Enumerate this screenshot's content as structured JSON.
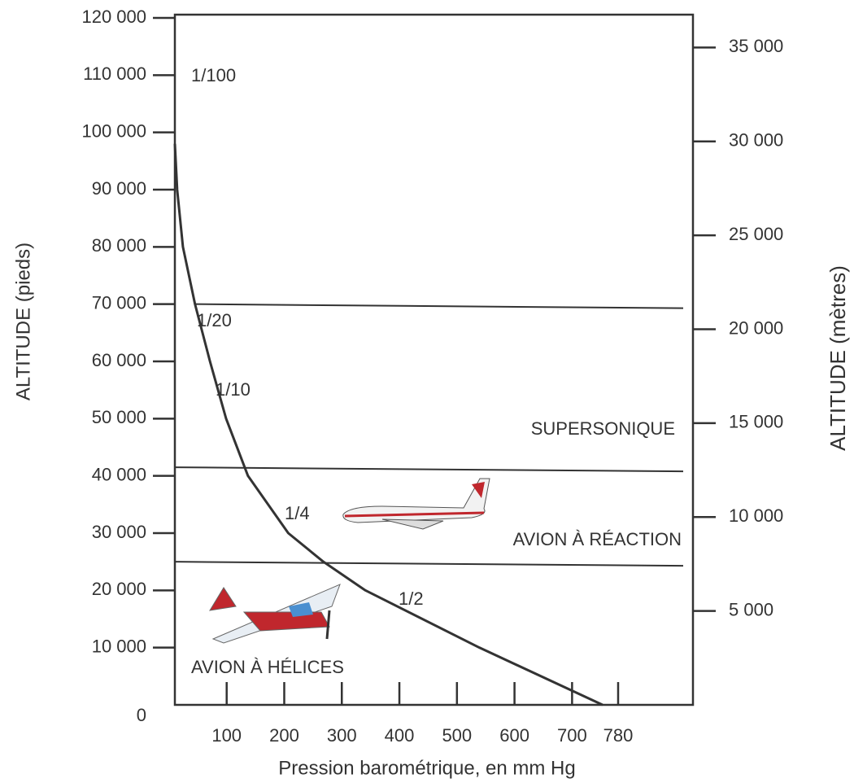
{
  "chart_data": {
    "type": "line",
    "xlabel": "Pression barométrique, en mm Hg",
    "ylabel": "ALTITUDE (pieds)",
    "y2label": "ALTITUDE (mètres)",
    "x": [
      10,
      14,
      24,
      45,
      71,
      99,
      137,
      207,
      268,
      341,
      539,
      753
    ],
    "series": [
      {
        "name": "pression",
        "color": "#333333",
        "values": [
          98000,
          90000,
          80000,
          70000,
          60000,
          50000,
          40000,
          30000,
          25000,
          20000,
          10000,
          0
        ]
      }
    ],
    "xlim": [
      10,
      910
    ],
    "xticks": [
      100,
      200,
      300,
      400,
      500,
      600,
      700,
      780
    ],
    "ylim": [
      0,
      120000
    ],
    "yticks": [
      0,
      {
        "value": 10000,
        "label": "10 000"
      },
      {
        "value": 20000,
        "label": "20 000"
      },
      {
        "value": 30000,
        "label": "30 000"
      },
      {
        "value": 40000,
        "label": "40 000"
      },
      {
        "value": 50000,
        "label": "50 000"
      },
      {
        "value": 60000,
        "label": "60 000"
      },
      {
        "value": 70000,
        "label": "70 000"
      },
      {
        "value": 80000,
        "label": "80 000"
      },
      {
        "value": 90000,
        "label": "90 000"
      },
      {
        "value": 100000,
        "label": "100 000"
      },
      {
        "value": 110000,
        "label": "110 000"
      },
      {
        "value": 120000,
        "label": "120 000"
      }
    ],
    "y2lim": [
      0,
      36576
    ],
    "y2ticks": [
      {
        "value": 5000,
        "label": "5 000"
      },
      {
        "value": 10000,
        "label": "10 000"
      },
      {
        "value": 15000,
        "label": "15 000"
      },
      {
        "value": 20000,
        "label": "20 000"
      },
      {
        "value": 25000,
        "label": "25 000"
      },
      {
        "value": 30000,
        "label": "30 000"
      },
      {
        "value": 35000,
        "label": "35 000"
      }
    ],
    "boundaries": [
      70000,
      41500,
      25000
    ],
    "annotations": [
      "1/100",
      "1/20",
      "1/10",
      "1/4",
      "1/2",
      "SUPERSONIQUE",
      "AVION À RÉACTION",
      "AVION À HÉLICES"
    ]
  }
}
